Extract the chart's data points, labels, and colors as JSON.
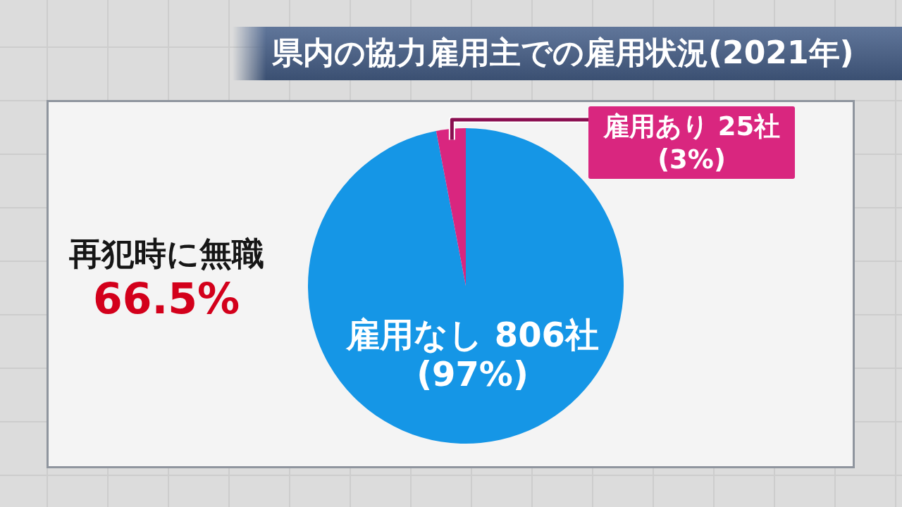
{
  "chart_data": {
    "type": "pie",
    "title": "県内の協力雇用主での雇用状況(2021年)",
    "categories": [
      "雇用なし",
      "雇用あり"
    ],
    "values": [
      806,
      25
    ],
    "colors": [
      "#1596e6",
      "#d9267f"
    ],
    "value_labels": [
      "806社\n(97%)",
      "25社\n(3%)"
    ],
    "annotations": [
      "再犯時に無職",
      "66.5%"
    ]
  }
}
